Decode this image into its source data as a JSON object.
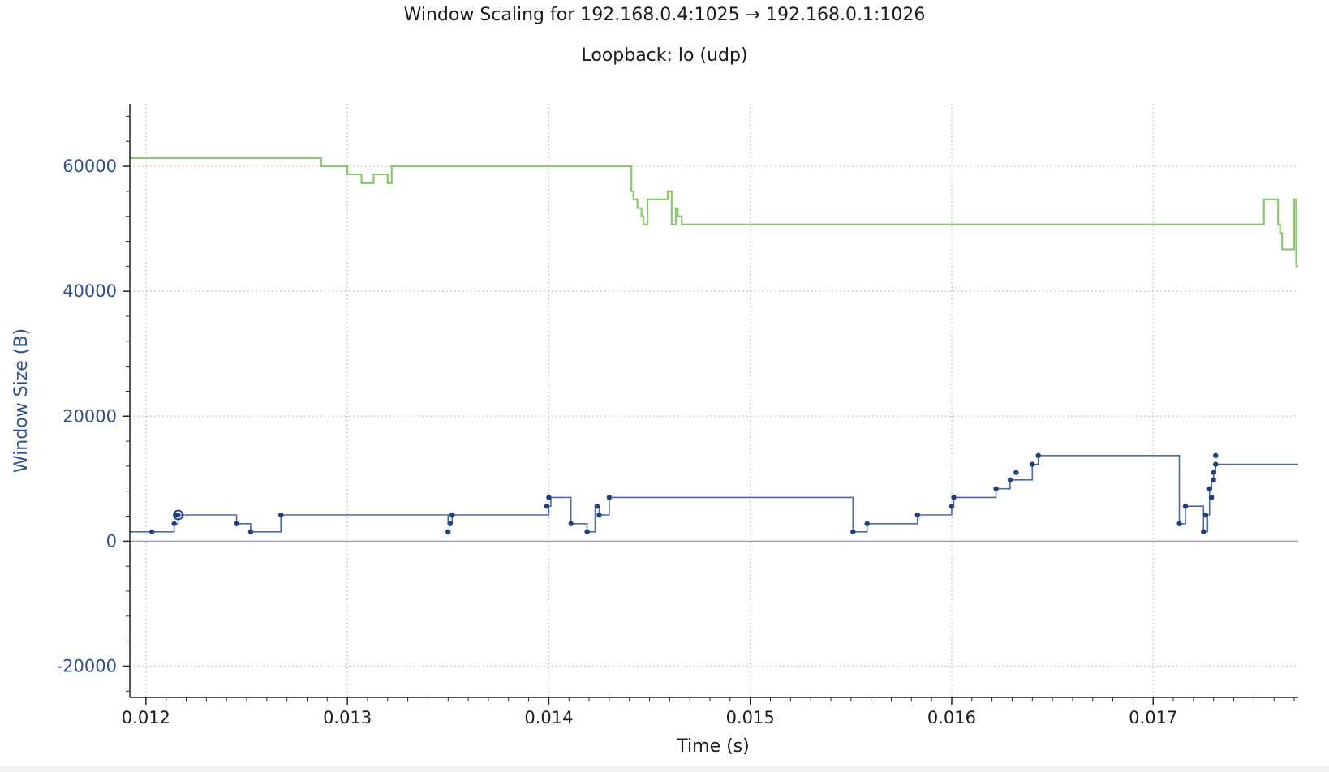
{
  "chart_data": {
    "type": "line",
    "title": "Window Scaling for 192.168.0.4:1025 → 192.168.0.1:1026",
    "subtitle": "Loopback: lo (udp)",
    "xlabel": "Time (s)",
    "ylabel": "Window Size (B)",
    "xlim": [
      0.01192,
      0.01772
    ],
    "ylim": [
      -25000,
      70000
    ],
    "x_ticks": [
      "0.012",
      "0.013",
      "0.014",
      "0.015",
      "0.016",
      "0.017"
    ],
    "y_ticks": [
      "60000",
      "40000",
      "20000",
      "0",
      "-20000"
    ],
    "grid": true,
    "legend": "none",
    "colors": {
      "rwin": "#8cc870",
      "bytes_out": "#4a6aa8",
      "points": "#1f3f80",
      "axis": "#222222",
      "ylabel": "#2e4f8f",
      "grid": "#b4b4b4"
    },
    "series": [
      {
        "kind": "step-line",
        "x": [
          0.01192,
          0.01287,
          0.01287,
          0.013,
          0.013,
          0.01307,
          0.01307,
          0.01313,
          0.01313,
          0.0132,
          0.0132,
          0.01322,
          0.01322,
          0.0134,
          0.014,
          0.01441,
          0.01441,
          0.01442,
          0.01442,
          0.01444,
          0.01444,
          0.01446,
          0.01446,
          0.01447,
          0.01447,
          0.01449,
          0.01449,
          0.01459,
          0.01459,
          0.01461,
          0.01461,
          0.01463,
          0.01463,
          0.01464,
          0.01464,
          0.01466,
          0.01466,
          0.016,
          0.01755,
          0.01755,
          0.01762,
          0.01762,
          0.01763,
          0.01763,
          0.01764,
          0.01764,
          0.0177,
          0.0177,
          0.01771,
          0.01771,
          0.01772
        ],
        "y": [
          61300,
          61300,
          60000,
          60000,
          58700,
          58700,
          57300,
          57300,
          58700,
          58700,
          57300,
          57300,
          60000,
          60000,
          60000,
          60000,
          56000,
          56000,
          54700,
          54700,
          53300,
          53300,
          52000,
          52000,
          50700,
          50700,
          54700,
          54700,
          56000,
          56000,
          50700,
          50700,
          53300,
          53300,
          52000,
          52000,
          50700,
          50700,
          50700,
          54700,
          54700,
          50700,
          50700,
          49300,
          49300,
          46700,
          46700,
          54700,
          54700,
          44000,
          44000
        ]
      },
      {
        "kind": "step-line",
        "x": [
          0.01192,
          0.01214,
          0.01214,
          0.01216,
          0.01216,
          0.01245,
          0.01245,
          0.01252,
          0.01252,
          0.01267,
          0.01267,
          0.0135,
          0.0135,
          0.01352,
          0.01352,
          0.014,
          0.014,
          0.01401,
          0.01401,
          0.01411,
          0.01411,
          0.01419,
          0.01419,
          0.01423,
          0.01423,
          0.01425,
          0.01425,
          0.0143,
          0.0143,
          0.015,
          0.01551,
          0.01551,
          0.01558,
          0.01558,
          0.01583,
          0.01583,
          0.016,
          0.016,
          0.01601,
          0.01601,
          0.01622,
          0.01622,
          0.01629,
          0.01629,
          0.0164,
          0.0164,
          0.01643,
          0.01643,
          0.01713,
          0.01713,
          0.01716,
          0.01716,
          0.01725,
          0.01725,
          0.01727,
          0.01727,
          0.01728,
          0.01728,
          0.01729,
          0.01729,
          0.0173,
          0.0173,
          0.01731,
          0.01731,
          0.01772
        ],
        "y": [
          1500,
          1500,
          2800,
          2800,
          4200,
          4200,
          2800,
          2800,
          1500,
          1500,
          4200,
          4200,
          2800,
          2800,
          4200,
          4200,
          5600,
          5600,
          7000,
          7000,
          2800,
          2800,
          1500,
          1500,
          5600,
          5600,
          4200,
          4200,
          7000,
          7000,
          7000,
          1500,
          1500,
          2800,
          2800,
          4200,
          4200,
          5600,
          5600,
          7000,
          7000,
          8400,
          8400,
          9800,
          9800,
          12300,
          12300,
          13700,
          13700,
          2800,
          2800,
          5600,
          5600,
          1500,
          1500,
          4200,
          4200,
          8400,
          8400,
          9800,
          9800,
          11000,
          11000,
          12300,
          12300
        ]
      },
      {
        "kind": "points",
        "x": [
          0.01203,
          0.01214,
          0.01215,
          0.01245,
          0.01252,
          0.01267,
          0.0135,
          0.01351,
          0.01352,
          0.01399,
          0.014,
          0.01411,
          0.01419,
          0.01424,
          0.01425,
          0.0143,
          0.01551,
          0.01558,
          0.01583,
          0.016,
          0.01601,
          0.01622,
          0.01629,
          0.01632,
          0.0164,
          0.01643,
          0.01713,
          0.01716,
          0.01725,
          0.01726,
          0.01728,
          0.01729,
          0.0173,
          0.0173,
          0.01731,
          0.01731
        ],
        "y": [
          1500,
          2800,
          4200,
          2800,
          1500,
          4200,
          1500,
          2800,
          4200,
          5600,
          7000,
          2800,
          1500,
          5600,
          4200,
          7000,
          1500,
          2800,
          4200,
          5600,
          7000,
          8400,
          9800,
          11000,
          12300,
          13700,
          2800,
          5600,
          1500,
          4200,
          8400,
          7000,
          9800,
          11000,
          13700,
          12300
        ]
      }
    ],
    "highlight_point": {
      "x": 0.01216,
      "y": 4200
    }
  }
}
